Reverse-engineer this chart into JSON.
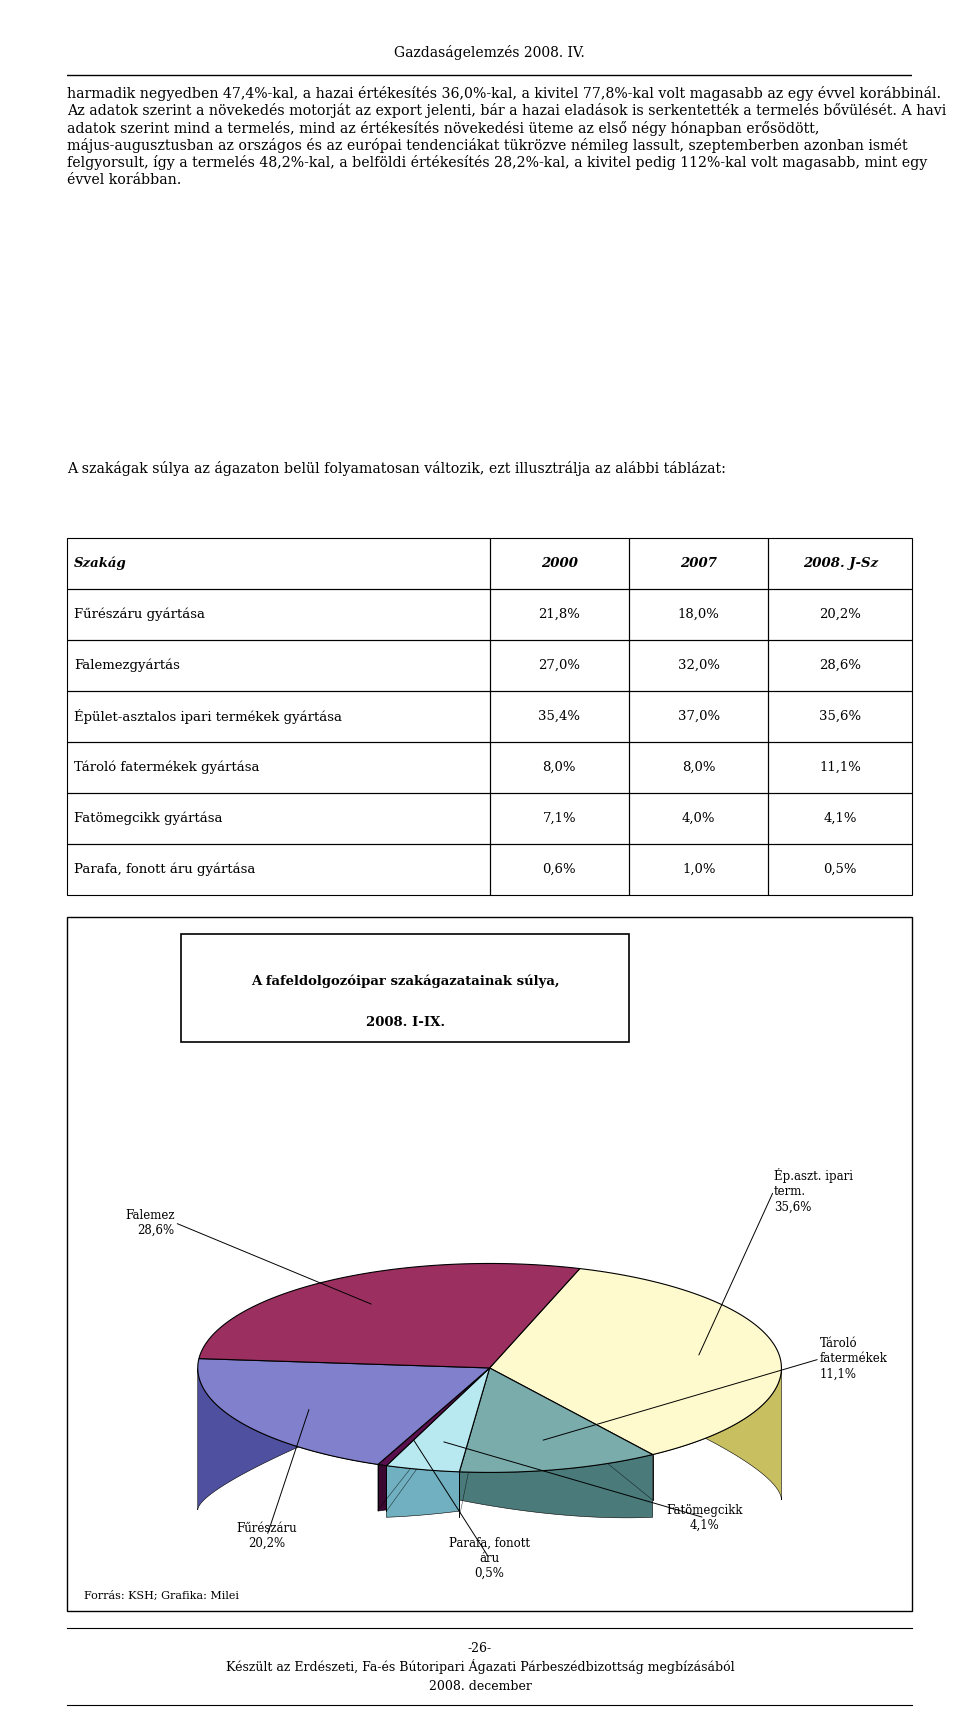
{
  "page_header": "Gazdaságelemzés 2008. IV.",
  "paragraph1": "harmadik negyedben 47,4%-kal, a hazai értékesítés 36,0%-kal, a kivitel 77,8%-kal volt magasabb az egy évvel korábbinál. Az adatok szerint a növekedés motorját az export jelenti, bár a hazai eladások is serkentették a termelés bővülését. A havi adatok szerint mind a termelés, mind az értékesítés növekedési üteme az első négy hónapban erősödött, május-augusztusban az országos és az európai tendenciákat tükrözve némileg lassult, szeptemberben azonban ismét felgyorsult, így a termelés 48,2%-kal, a belföldi értékesítés 28,2%-kal, a kivitel pedig 112%-kal volt magasabb, mint egy évvel korábban.",
  "paragraph2": "A szakágak súlya az ágazaton belül folyamatosan változik, ezt illusztrálja az alábbi táblázat:",
  "table_headers": [
    "Szakág",
    "2000",
    "2007",
    "2008. J-Sz"
  ],
  "table_rows": [
    [
      "Fűrészáru gyártása",
      "21,8%",
      "18,0%",
      "20,2%"
    ],
    [
      "Falemezgyártás",
      "27,0%",
      "32,0%",
      "28,6%"
    ],
    [
      "Épület-asztalos ipari termékek gyártása",
      "35,4%",
      "37,0%",
      "35,6%"
    ],
    [
      "Tároló fatermékek gyártása",
      "8,0%",
      "8,0%",
      "11,1%"
    ],
    [
      "Fatömegcikk gyártása",
      "7,1%",
      "4,0%",
      "4,1%"
    ],
    [
      "Parafa, fonott áru gyártása",
      "0,6%",
      "1,0%",
      "0,5%"
    ]
  ],
  "chart_title_line1": "A fafeldolgozóipar szakágazatainak súlya,",
  "chart_title_line2": "2008. I-IX.",
  "pie_values": [
    35.6,
    11.1,
    4.1,
    0.5,
    20.2,
    28.6
  ],
  "pie_face_colors": [
    "#FFFACD",
    "#7BACAC",
    "#B8E8F0",
    "#5B0F4E",
    "#8080CC",
    "#9B3060"
  ],
  "pie_side_colors": [
    "#C8C060",
    "#4A7A7A",
    "#70B0C0",
    "#3A0830",
    "#5050A0",
    "#6B1040"
  ],
  "pie_label_texts": [
    "Ép.aszt. ipari\nterm.\n35,6%",
    "Tároló\nfatermékek\n11,1%",
    "Fatömegcikk\n4,1%",
    "Parafa, fonott\náru\n0,5%",
    "Fűrészáru\n20,2%",
    "Falemez\n28,6%"
  ],
  "footer_source": "Forrás: KSH; Grafika: Milei",
  "page_footer_line1": "-26-",
  "page_footer_line2": "Készült az Erdészeti, Fa-és Bútoripari Ágazati Párbeszédbizottság megbízásából",
  "page_footer_line3": "2008. december"
}
